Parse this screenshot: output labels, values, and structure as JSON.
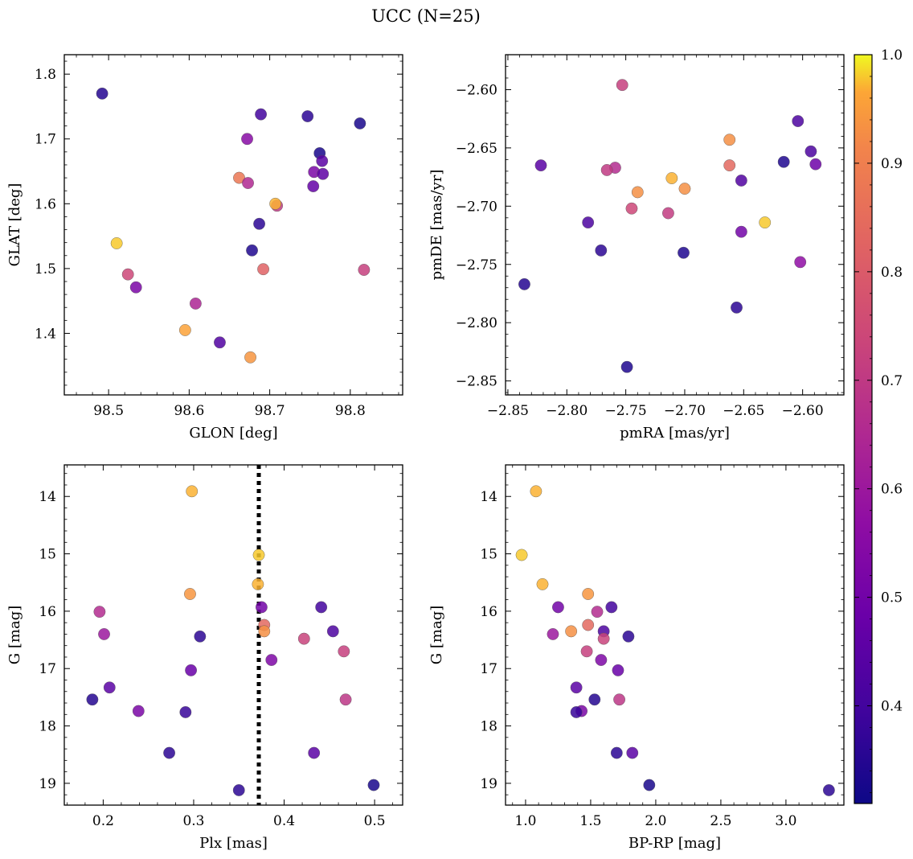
{
  "figure": {
    "title": "UCC (N=25)"
  },
  "colorbar": {
    "colormap": "plasma",
    "range": [
      0.31,
      1.0
    ],
    "ticks": [
      0.4,
      0.5,
      0.6,
      0.7,
      0.8,
      0.9,
      1.0
    ],
    "tick_labels": [
      "0.4",
      "0.5",
      "0.6",
      "0.7",
      "0.8",
      "0.9",
      "1.0"
    ]
  },
  "chart_data": [
    {
      "type": "scatter",
      "xlabel": "GLON [deg]",
      "ylabel": "GLAT [deg]",
      "xlim": [
        98.445,
        98.865
      ],
      "ylim": [
        1.305,
        1.83
      ],
      "y_inverted": false,
      "xticks": [
        98.5,
        98.6,
        98.7,
        98.8
      ],
      "xtick_labels": [
        "98.5",
        "98.6",
        "98.7",
        "98.8"
      ],
      "yticks": [
        1.4,
        1.5,
        1.6,
        1.7,
        1.8
      ],
      "ytick_labels": [
        "1.4",
        "1.5",
        "1.6",
        "1.7",
        "1.8"
      ],
      "points": [
        {
          "x": 98.492,
          "y": 1.77,
          "c": 0.35
        },
        {
          "x": 98.689,
          "y": 1.738,
          "c": 0.4
        },
        {
          "x": 98.747,
          "y": 1.735,
          "c": 0.36
        },
        {
          "x": 98.812,
          "y": 1.724,
          "c": 0.33
        },
        {
          "x": 98.672,
          "y": 1.7,
          "c": 0.55
        },
        {
          "x": 98.762,
          "y": 1.678,
          "c": 0.33
        },
        {
          "x": 98.765,
          "y": 1.666,
          "c": 0.45
        },
        {
          "x": 98.755,
          "y": 1.649,
          "c": 0.52
        },
        {
          "x": 98.766,
          "y": 1.646,
          "c": 0.46
        },
        {
          "x": 98.662,
          "y": 1.64,
          "c": 0.88
        },
        {
          "x": 98.673,
          "y": 1.632,
          "c": 0.65
        },
        {
          "x": 98.754,
          "y": 1.627,
          "c": 0.47
        },
        {
          "x": 98.709,
          "y": 1.597,
          "c": 0.7
        },
        {
          "x": 98.707,
          "y": 1.6,
          "c": 0.97
        },
        {
          "x": 98.687,
          "y": 1.569,
          "c": 0.36
        },
        {
          "x": 98.51,
          "y": 1.539,
          "c": 0.98
        },
        {
          "x": 98.678,
          "y": 1.528,
          "c": 0.34
        },
        {
          "x": 98.692,
          "y": 1.499,
          "c": 0.82
        },
        {
          "x": 98.817,
          "y": 1.498,
          "c": 0.72
        },
        {
          "x": 98.524,
          "y": 1.491,
          "c": 0.74
        },
        {
          "x": 98.534,
          "y": 1.471,
          "c": 0.52
        },
        {
          "x": 98.608,
          "y": 1.446,
          "c": 0.64
        },
        {
          "x": 98.595,
          "y": 1.405,
          "c": 0.96
        },
        {
          "x": 98.638,
          "y": 1.386,
          "c": 0.43
        },
        {
          "x": 98.676,
          "y": 1.363,
          "c": 0.94
        }
      ]
    },
    {
      "type": "scatter",
      "xlabel": "pmRA [mas/yr]",
      "ylabel": "pmDE [mas/yr]",
      "xlim": [
        -2.852,
        -2.565
      ],
      "ylim": [
        -2.862,
        -2.57
      ],
      "y_inverted": false,
      "xticks": [
        -2.85,
        -2.8,
        -2.75,
        -2.7,
        -2.65,
        -2.6
      ],
      "xtick_labels": [
        "−2.85",
        "−2.80",
        "−2.75",
        "−2.70",
        "−2.65",
        "−2.60"
      ],
      "yticks": [
        -2.85,
        -2.8,
        -2.75,
        -2.7,
        -2.65,
        -2.6
      ],
      "ytick_labels": [
        "−2.85",
        "−2.80",
        "−2.75",
        "−2.70",
        "−2.65",
        "−2.60"
      ],
      "points": [
        {
          "x": -2.753,
          "y": -2.596,
          "c": 0.72
        },
        {
          "x": -2.604,
          "y": -2.627,
          "c": 0.42
        },
        {
          "x": -2.662,
          "y": -2.643,
          "c": 0.93
        },
        {
          "x": -2.593,
          "y": -2.653,
          "c": 0.42
        },
        {
          "x": -2.616,
          "y": -2.662,
          "c": 0.34
        },
        {
          "x": -2.589,
          "y": -2.664,
          "c": 0.49
        },
        {
          "x": -2.822,
          "y": -2.665,
          "c": 0.45
        },
        {
          "x": -2.662,
          "y": -2.665,
          "c": 0.84
        },
        {
          "x": -2.759,
          "y": -2.667,
          "c": 0.66
        },
        {
          "x": -2.766,
          "y": -2.669,
          "c": 0.7
        },
        {
          "x": -2.711,
          "y": -2.676,
          "c": 0.97
        },
        {
          "x": -2.652,
          "y": -2.678,
          "c": 0.43
        },
        {
          "x": -2.7,
          "y": -2.685,
          "c": 0.93
        },
        {
          "x": -2.74,
          "y": -2.688,
          "c": 0.93
        },
        {
          "x": -2.745,
          "y": -2.702,
          "c": 0.74
        },
        {
          "x": -2.714,
          "y": -2.706,
          "c": 0.71
        },
        {
          "x": -2.632,
          "y": -2.714,
          "c": 0.98
        },
        {
          "x": -2.782,
          "y": -2.714,
          "c": 0.42
        },
        {
          "x": -2.652,
          "y": -2.722,
          "c": 0.5
        },
        {
          "x": -2.771,
          "y": -2.738,
          "c": 0.36
        },
        {
          "x": -2.701,
          "y": -2.74,
          "c": 0.34
        },
        {
          "x": -2.602,
          "y": -2.748,
          "c": 0.57
        },
        {
          "x": -2.836,
          "y": -2.767,
          "c": 0.35
        },
        {
          "x": -2.656,
          "y": -2.787,
          "c": 0.36
        },
        {
          "x": -2.749,
          "y": -2.838,
          "c": 0.34
        }
      ]
    },
    {
      "type": "scatter",
      "xlabel": "Plx [mas]",
      "ylabel": "G [mag]",
      "xlim": [
        0.157,
        0.531
      ],
      "ylim": [
        13.45,
        19.38
      ],
      "y_inverted": true,
      "vline": {
        "x": 0.372,
        "style": "dotted"
      },
      "xticks": [
        0.2,
        0.3,
        0.4,
        0.5
      ],
      "xtick_labels": [
        "0.2",
        "0.3",
        "0.4",
        "0.5"
      ],
      "yticks": [
        14,
        15,
        16,
        17,
        18,
        19
      ],
      "ytick_labels": [
        "14",
        "15",
        "16",
        "17",
        "18",
        "19"
      ],
      "points": [
        {
          "x": 0.298,
          "y": 13.91,
          "c": 0.97
        },
        {
          "x": 0.372,
          "y": 15.02,
          "c": 0.98
        },
        {
          "x": 0.371,
          "y": 15.53,
          "c": 0.97
        },
        {
          "x": 0.296,
          "y": 15.7,
          "c": 0.94
        },
        {
          "x": 0.375,
          "y": 15.93,
          "c": 0.5
        },
        {
          "x": 0.441,
          "y": 15.93,
          "c": 0.4
        },
        {
          "x": 0.196,
          "y": 16.01,
          "c": 0.66
        },
        {
          "x": 0.378,
          "y": 16.24,
          "c": 0.84
        },
        {
          "x": 0.378,
          "y": 16.35,
          "c": 0.93
        },
        {
          "x": 0.454,
          "y": 16.35,
          "c": 0.42
        },
        {
          "x": 0.201,
          "y": 16.4,
          "c": 0.6
        },
        {
          "x": 0.307,
          "y": 16.44,
          "c": 0.36
        },
        {
          "x": 0.422,
          "y": 16.48,
          "c": 0.73
        },
        {
          "x": 0.466,
          "y": 16.7,
          "c": 0.72
        },
        {
          "x": 0.386,
          "y": 16.85,
          "c": 0.53
        },
        {
          "x": 0.297,
          "y": 17.03,
          "c": 0.48
        },
        {
          "x": 0.207,
          "y": 17.33,
          "c": 0.45
        },
        {
          "x": 0.188,
          "y": 17.54,
          "c": 0.35
        },
        {
          "x": 0.468,
          "y": 17.54,
          "c": 0.69
        },
        {
          "x": 0.239,
          "y": 17.74,
          "c": 0.52
        },
        {
          "x": 0.291,
          "y": 17.76,
          "c": 0.38
        },
        {
          "x": 0.273,
          "y": 18.47,
          "c": 0.36
        },
        {
          "x": 0.433,
          "y": 18.47,
          "c": 0.45
        },
        {
          "x": 0.499,
          "y": 19.03,
          "c": 0.33
        },
        {
          "x": 0.35,
          "y": 19.12,
          "c": 0.36
        }
      ]
    },
    {
      "type": "scatter",
      "xlabel": "BP-RP [mag]",
      "ylabel": "G [mag]",
      "xlim": [
        0.846,
        3.445
      ],
      "ylim": [
        13.45,
        19.38
      ],
      "y_inverted": true,
      "xticks": [
        1.0,
        1.5,
        2.0,
        2.5,
        3.0
      ],
      "xtick_labels": [
        "1.0",
        "1.5",
        "2.0",
        "2.5",
        "3.0"
      ],
      "yticks": [
        14,
        15,
        16,
        17,
        18,
        19
      ],
      "ytick_labels": [
        "14",
        "15",
        "16",
        "17",
        "18",
        "19"
      ],
      "points": [
        {
          "x": 1.08,
          "y": 13.91,
          "c": 0.97
        },
        {
          "x": 0.97,
          "y": 15.02,
          "c": 0.98
        },
        {
          "x": 1.13,
          "y": 15.53,
          "c": 0.97
        },
        {
          "x": 1.48,
          "y": 15.7,
          "c": 0.94
        },
        {
          "x": 1.25,
          "y": 15.93,
          "c": 0.5
        },
        {
          "x": 1.66,
          "y": 15.93,
          "c": 0.4
        },
        {
          "x": 1.55,
          "y": 16.01,
          "c": 0.66
        },
        {
          "x": 1.48,
          "y": 16.24,
          "c": 0.84
        },
        {
          "x": 1.35,
          "y": 16.35,
          "c": 0.93
        },
        {
          "x": 1.6,
          "y": 16.35,
          "c": 0.42
        },
        {
          "x": 1.21,
          "y": 16.4,
          "c": 0.6
        },
        {
          "x": 1.79,
          "y": 16.44,
          "c": 0.36
        },
        {
          "x": 1.6,
          "y": 16.48,
          "c": 0.73
        },
        {
          "x": 1.47,
          "y": 16.7,
          "c": 0.72
        },
        {
          "x": 1.58,
          "y": 16.85,
          "c": 0.53
        },
        {
          "x": 1.71,
          "y": 17.03,
          "c": 0.48
        },
        {
          "x": 1.39,
          "y": 17.33,
          "c": 0.45
        },
        {
          "x": 1.53,
          "y": 17.54,
          "c": 0.35
        },
        {
          "x": 1.72,
          "y": 17.54,
          "c": 0.69
        },
        {
          "x": 1.43,
          "y": 17.74,
          "c": 0.52
        },
        {
          "x": 1.39,
          "y": 17.76,
          "c": 0.38
        },
        {
          "x": 1.7,
          "y": 18.47,
          "c": 0.36
        },
        {
          "x": 1.82,
          "y": 18.47,
          "c": 0.45
        },
        {
          "x": 1.95,
          "y": 19.03,
          "c": 0.33
        },
        {
          "x": 3.33,
          "y": 19.12,
          "c": 0.36
        }
      ]
    }
  ]
}
